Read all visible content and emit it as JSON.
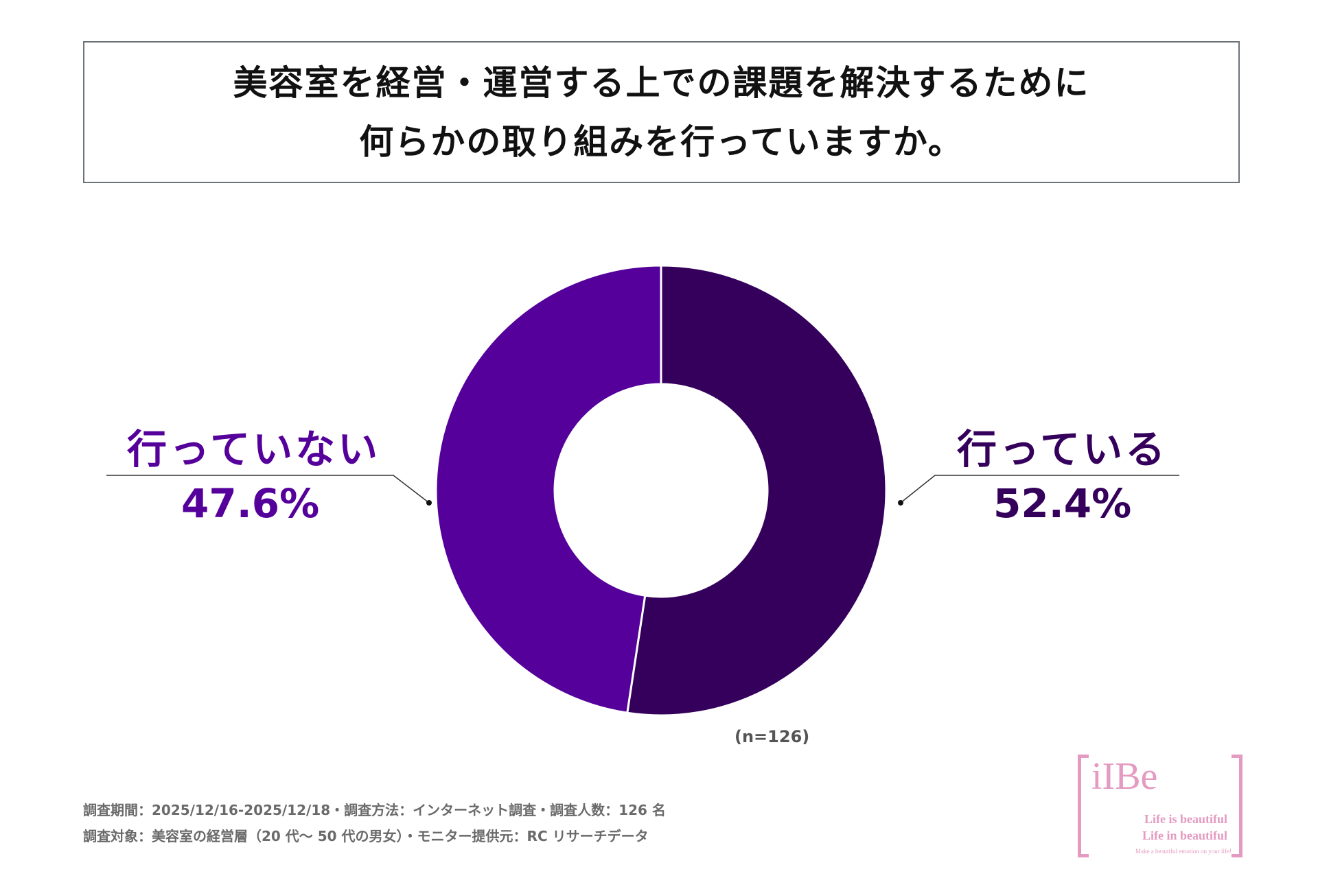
{
  "title": {
    "line1": "美容室を経営・運営する上での課題を解決するために",
    "line2": "何らかの取り組みを行っていますか。"
  },
  "chart_data": {
    "type": "pie",
    "donut": true,
    "categories": [
      "行っている",
      "行っていない"
    ],
    "values": [
      52.4,
      47.6
    ],
    "percent_labels": [
      "52.4%",
      "47.6%"
    ],
    "colors": [
      "#35005b",
      "#55009b"
    ],
    "sample_size": "(n=126)"
  },
  "footnotes": {
    "line1": "調査期間：2025/12/16-2025/12/18・調査方法：インターネット調査・調査人数：126 名",
    "line2": "調査対象：美容室の経営層（20 代～ 50 代の男女）・モニター提供元：RC リサーチデータ"
  },
  "logo": {
    "brand": "iIBe",
    "tagline1": "Life is beautiful",
    "tagline2": "Life in beautiful",
    "tagline3": "Make a beautiful emotion on your life!"
  }
}
